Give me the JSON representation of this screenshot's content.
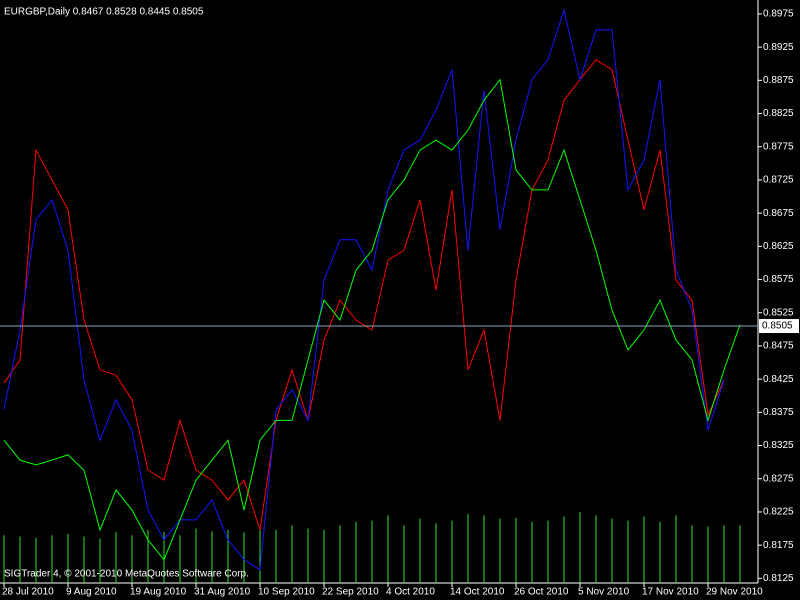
{
  "chart_data": {
    "type": "line",
    "title": "EURGBP,Daily  0.8467 0.8528 0.8445 0.8505",
    "footer": "SIGTrader 4, © 2001-2010 MetaQuotes Software Corp.",
    "background": "#000000",
    "categories": [
      "28 Jul 2010",
      null,
      null,
      null,
      "9 Aug 2010",
      null,
      null,
      null,
      "19 Aug 2010",
      null,
      null,
      null,
      "31 Aug 2010",
      null,
      null,
      null,
      "10 Sep 2010",
      null,
      null,
      null,
      "22 Sep 2010",
      null,
      null,
      null,
      "4 Oct 2010",
      null,
      null,
      null,
      "14 Oct 2010",
      null,
      null,
      null,
      "26 Oct 2010",
      null,
      null,
      null,
      "5 Nov 2010",
      null,
      null,
      null,
      "17 Nov 2010",
      null,
      null,
      null,
      "29 Nov 2010",
      null,
      null
    ],
    "series": [
      {
        "color": "#ff0000",
        "values": [
          0.8419,
          0.8454,
          0.877,
          0.8725,
          0.868,
          0.8514,
          0.8439,
          0.8431,
          0.8394,
          0.8288,
          0.8273,
          0.8363,
          0.8288,
          0.8273,
          0.8243,
          0.8273,
          0.8198,
          0.8363,
          0.8439,
          0.8363,
          0.8484,
          0.8544,
          0.8514,
          0.8499,
          0.8604,
          0.8619,
          0.8695,
          0.8559,
          0.871,
          0.8439,
          0.8499,
          0.8363,
          0.8574,
          0.871,
          0.8755,
          0.8845,
          0.8876,
          0.8906,
          0.8891,
          0.8785,
          0.868,
          0.877,
          0.8574,
          0.8544,
          0.8371,
          0.8424,
          null
        ]
      },
      {
        "color": "#1515ff",
        "values": [
          0.8379,
          0.8499,
          0.8665,
          0.8695,
          0.8619,
          0.8424,
          0.8333,
          0.8394,
          0.8348,
          0.8228,
          0.8183,
          0.8213,
          0.8213,
          0.8243,
          0.8183,
          0.8153,
          0.8138,
          0.8379,
          0.8409,
          0.8363,
          0.8574,
          0.8635,
          0.8635,
          0.8589,
          0.871,
          0.877,
          0.8785,
          0.883,
          0.8891,
          0.8619,
          0.886,
          0.865,
          0.8785,
          0.8876,
          0.8906,
          0.8981,
          0.8876,
          0.8951,
          0.8951,
          0.871,
          0.8755,
          0.8876,
          0.8589,
          0.8529,
          0.8348,
          0.8424,
          null
        ]
      },
      {
        "color": "#00ff00",
        "values": [
          0.8333,
          0.8303,
          0.8296,
          0.8303,
          0.8311,
          0.8288,
          0.8198,
          0.8258,
          0.8228,
          0.8183,
          0.8153,
          0.8213,
          0.8273,
          0.8303,
          0.8333,
          0.8228,
          0.8333,
          0.8363,
          0.8363,
          0.8454,
          0.8544,
          0.8514,
          0.8589,
          0.8619,
          0.8695,
          0.8725,
          0.877,
          0.8785,
          0.877,
          0.88,
          0.8845,
          0.8876,
          0.874,
          0.871,
          0.871,
          0.877,
          0.8695,
          0.8619,
          0.8529,
          0.8469,
          0.8499,
          0.8544,
          0.8484,
          0.8454,
          0.8363,
          0.8439,
          0.8507
        ]
      }
    ],
    "volume": {
      "color": "#33dd33",
      "values": [
        0.819,
        0.8188,
        0.8186,
        0.819,
        0.8192,
        0.8188,
        0.8185,
        0.8195,
        0.819,
        0.8198,
        0.8195,
        0.819,
        0.82,
        0.8196,
        0.8198,
        0.8194,
        0.82,
        0.8198,
        0.8205,
        0.82,
        0.8198,
        0.8205,
        0.821,
        0.8212,
        0.822,
        0.8205,
        0.8215,
        0.8208,
        0.8212,
        0.8222,
        0.822,
        0.8215,
        0.8216,
        0.821,
        0.8212,
        0.8218,
        0.8225,
        0.822,
        0.8215,
        0.8212,
        0.8218,
        0.821,
        0.822,
        0.8205,
        0.8203,
        0.8205,
        0.8205
      ]
    },
    "price_line": {
      "value": 0.8505,
      "color": "#8aa6bf"
    },
    "ylim": [
      0.8118,
      0.8996
    ],
    "yticks": [
      0.8975,
      0.8925,
      0.8875,
      0.8825,
      0.8775,
      0.8725,
      0.8675,
      0.8625,
      0.8575,
      0.8525,
      0.8475,
      0.8425,
      0.8375,
      0.8325,
      0.8275,
      0.8225,
      0.8175,
      0.8125
    ],
    "grid": false
  }
}
